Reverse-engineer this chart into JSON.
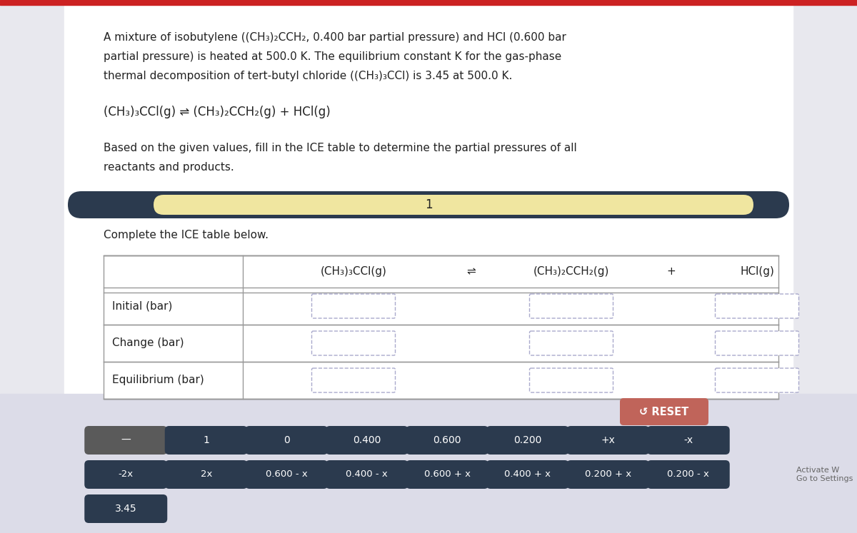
{
  "bg_color": "#e8e8ee",
  "white_bg": "#ffffff",
  "top_bar_color": "#cc2222",
  "intro_text_line1": "A mixture of isobutylene ((CH₃)₂CCH₂, 0.400 bar partial pressure) and HCl (0.600 bar",
  "intro_text_line2": "partial pressure) is heated at 500.0 K. The equilibrium constant K for the gas-phase",
  "intro_text_line3": "thermal decomposition of tert-butyl chloride ((CH₃)₃CCl) is 3.45 at 500.0 K.",
  "reaction_text": "(CH₃)₃CCl(g) ⇌ (CH₃)₂CCH₂(g) + HCl(g)",
  "instruction_line1": "Based on the given values, fill in the ICE table to determine the partial pressures of all",
  "instruction_line2": "reactants and products.",
  "progress_bar_dark": "#2b3a4e",
  "progress_bar_light": "#f0e6a0",
  "progress_label": "1",
  "complete_text": "Complete the ICE table below.",
  "table_header_cols": [
    "(CH₃)₃CCl(g)",
    "⇌",
    "(CH₃)₂CCH₂(g)",
    "+",
    "HCl(g)"
  ],
  "table_row_labels": [
    "Initial (bar)",
    "Change (bar)",
    "Equilibrium (bar)"
  ],
  "reset_btn_color": "#c0645a",
  "reset_text": "↺ RESET",
  "btn_dark_color": "#2b3a4e",
  "btn_gray_color": "#5a5a5a",
  "btn_row1": [
    "—",
    "1",
    "0",
    "0.400",
    "0.600",
    "0.200",
    "+x",
    "-x"
  ],
  "btn_row2": [
    "-2x",
    "2x",
    "0.600 - x",
    "0.400 - x",
    "0.600 + x",
    "0.400 + x",
    "0.200 + x",
    "0.200 - x"
  ],
  "btn_row3": [
    "3.45"
  ],
  "text_color_main": "#222222",
  "text_color_btn": "#ffffff",
  "input_box_color": "#ffffff",
  "input_box_border": "#aaaacc",
  "table_border_color": "#999999",
  "activate_text": "Activate W\nGo to Settings"
}
